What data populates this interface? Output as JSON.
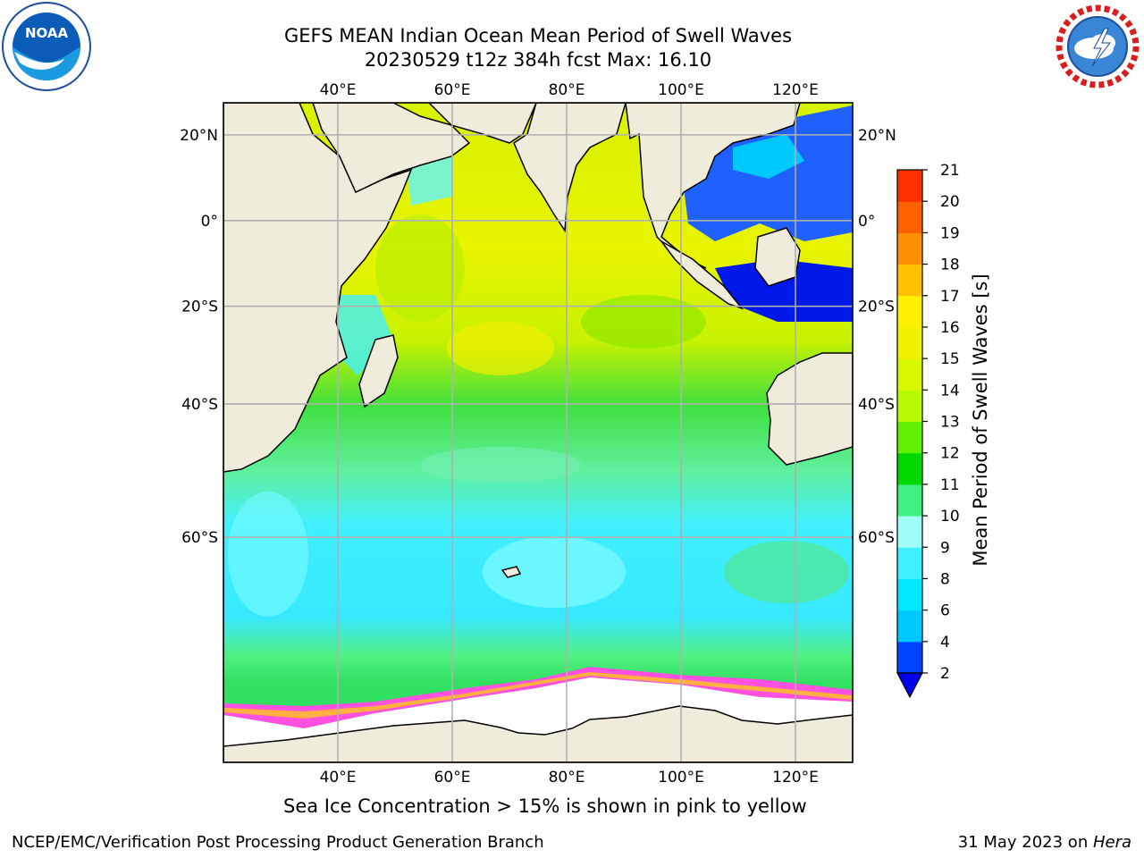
{
  "header": {
    "title_line1": "GEFS MEAN Indian Ocean Mean Period of Swell Waves",
    "title_line2": "20230529 t12z 384h fcst   Max: 16.10"
  },
  "logos": {
    "left": "NOAA",
    "right": "NATIONAL WEATHER SERVICE",
    "left_icon": "noaa-logo-icon",
    "right_icon": "nws-logo-icon"
  },
  "map": {
    "lon_labels": [
      "40°E",
      "60°E",
      "80°E",
      "100°E",
      "120°E"
    ],
    "lon_values": [
      40,
      60,
      80,
      100,
      120
    ],
    "lat_labels": [
      "20°N",
      "0°",
      "20°S",
      "40°S",
      "60°S"
    ],
    "lat_values": [
      20,
      0,
      -20,
      -40,
      -60
    ],
    "extent": {
      "lon_min": 20,
      "lon_max": 130,
      "lat_min": -78,
      "lat_max": 27
    },
    "colors": {
      "land": "#efecdc",
      "ice": "#ffffff",
      "grid": "#b0b0b0"
    }
  },
  "colorbar": {
    "label": "Mean Period of Swell Waves [s]",
    "ticks": [
      "2",
      "4",
      "6",
      "8",
      "9",
      "10",
      "11",
      "12",
      "13",
      "14",
      "15",
      "16",
      "17",
      "18",
      "19",
      "20",
      "21"
    ],
    "colors": [
      "#0044ff",
      "#00c8ff",
      "#00e8ff",
      "#40f0ff",
      "#a0fff8",
      "#40f080",
      "#00d800",
      "#60f000",
      "#b8f800",
      "#d8f800",
      "#f0f000",
      "#fff000",
      "#ffc000",
      "#ff9000",
      "#ff6000",
      "#ff3000",
      "#ff0000"
    ],
    "extend_color": "#0000ee"
  },
  "caption": "Sea Ice Concentration > 15% is shown in pink to yellow",
  "footer": {
    "left": "NCEP/EMC/Verification Post Processing Product Generation Branch",
    "right_date": "31 May 2023 on ",
    "right_host": "Hera"
  }
}
